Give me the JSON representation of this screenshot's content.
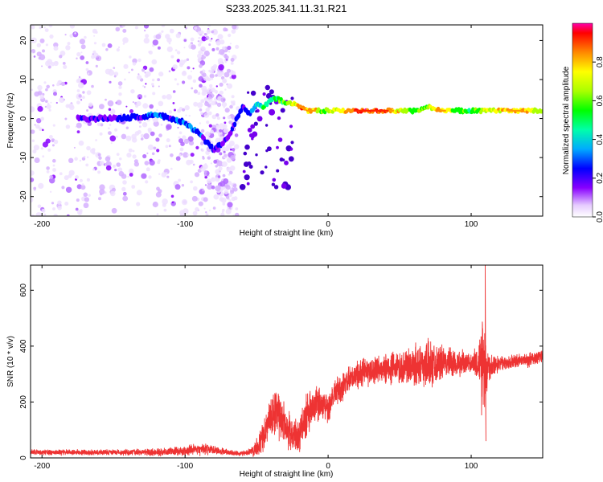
{
  "title": "S233.2025.341.11.31.R21",
  "chart_data": [
    {
      "type": "heatmap",
      "xlabel": "Height of straight line (km)",
      "ylabel": "Frequency (Hz)",
      "xlim": [
        -208,
        150
      ],
      "ylim": [
        -25,
        24
      ],
      "xticks": [
        "-200",
        "-100",
        "0",
        "100"
      ],
      "xtick_values": [
        -200,
        -100,
        0,
        100
      ],
      "yticks": [
        "-20",
        "-10",
        "0",
        "10",
        "20"
      ],
      "ytick_values": [
        -20,
        -10,
        0,
        10,
        20
      ],
      "ridge": {
        "name": "dominant frequency ridge",
        "x": [
          -170,
          -150,
          -130,
          -120,
          -110,
          -100,
          -90,
          -85,
          -80,
          -70,
          -60,
          -55,
          -50,
          -45,
          -40,
          -35,
          -30,
          -25,
          -20,
          -15,
          -10,
          -5,
          0,
          20,
          40,
          60,
          70,
          80,
          90,
          100,
          110,
          120,
          130,
          150
        ],
        "freq": [
          0,
          0,
          0.5,
          1,
          0,
          -1,
          -4,
          -6,
          -8,
          -5,
          3,
          1,
          4,
          3,
          5,
          5,
          4,
          4,
          3,
          2,
          2,
          2,
          2,
          2,
          2,
          2,
          3,
          2,
          2,
          2,
          2,
          2,
          2,
          2
        ],
        "amplitude": [
          0.2,
          0.25,
          0.3,
          0.35,
          0.3,
          0.35,
          0.3,
          0.3,
          0.3,
          0.2,
          0.3,
          0.3,
          0.4,
          0.5,
          0.5,
          0.6,
          0.6,
          0.7,
          0.9,
          0.9,
          0.9,
          0.6,
          0.7,
          0.95,
          0.95,
          0.6,
          0.7,
          0.9,
          0.6,
          0.6,
          0.7,
          0.8,
          0.9,
          0.7
        ]
      },
      "colorbar": {
        "label": "Normalized spectral amplitude",
        "range": [
          0.0,
          1.0
        ],
        "ticks": [
          "0.0",
          "0.2",
          "0.4",
          "0.6",
          "0.8"
        ],
        "tick_values": [
          0.0,
          0.2,
          0.4,
          0.6,
          0.8
        ]
      }
    },
    {
      "type": "line",
      "xlabel": "Height of straight line (km)",
      "ylabel": "SNR (10 * v/v)",
      "xlim": [
        -208,
        150
      ],
      "ylim": [
        0,
        690
      ],
      "xticks": [
        "-200",
        "-100",
        "0",
        "100"
      ],
      "xtick_values": [
        -200,
        -100,
        0,
        100
      ],
      "yticks": [
        "0",
        "200",
        "400",
        "600"
      ],
      "ytick_values": [
        0,
        200,
        400,
        600
      ],
      "series": [
        {
          "name": "SNR",
          "color": "#ee3333",
          "x": [
            -208,
            -180,
            -150,
            -120,
            -100,
            -90,
            -80,
            -70,
            -60,
            -55,
            -50,
            -45,
            -40,
            -35,
            -30,
            -25,
            -20,
            -15,
            -10,
            -5,
            0,
            5,
            10,
            20,
            30,
            40,
            50,
            60,
            70,
            80,
            90,
            100,
            105,
            108,
            110,
            112,
            120,
            130,
            140,
            150
          ],
          "y": [
            20,
            20,
            20,
            20,
            25,
            30,
            30,
            20,
            15,
            20,
            40,
            80,
            150,
            160,
            120,
            80,
            80,
            150,
            180,
            200,
            180,
            240,
            250,
            300,
            310,
            320,
            320,
            330,
            340,
            340,
            340,
            340,
            340,
            340,
            330,
            330,
            340,
            345,
            350,
            365
          ],
          "spread": [
            12,
            12,
            12,
            15,
            20,
            25,
            20,
            12,
            10,
            15,
            40,
            70,
            90,
            110,
            90,
            70,
            70,
            100,
            80,
            70,
            70,
            60,
            60,
            60,
            60,
            60,
            70,
            90,
            100,
            70,
            60,
            40,
            80,
            250,
            200,
            60,
            30,
            30,
            30,
            30
          ]
        }
      ]
    }
  ]
}
